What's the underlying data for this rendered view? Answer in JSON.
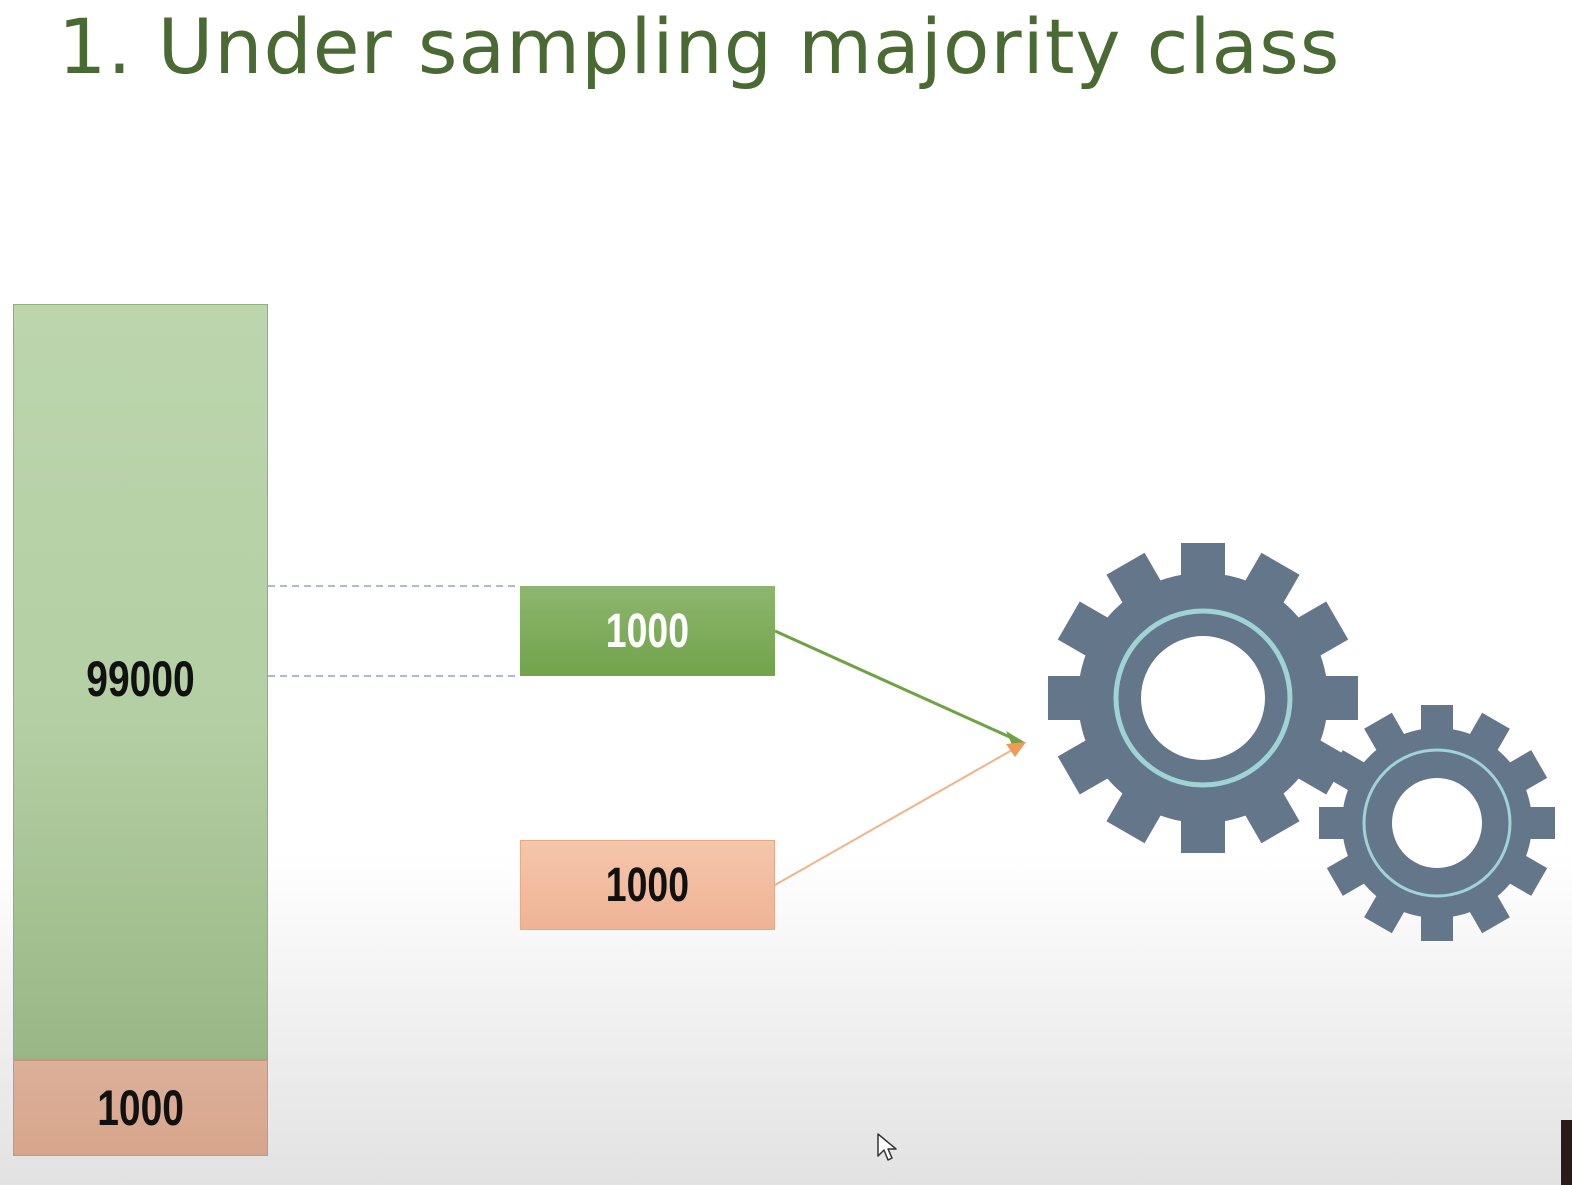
{
  "slide": {
    "title": "1. Under sampling majority class"
  },
  "original_data": {
    "majority_count": "99000",
    "minority_count": "1000"
  },
  "sampled_data": {
    "majority_sample_count": "1000",
    "minority_count": "1000"
  },
  "colors": {
    "title": "#4a6a34",
    "majority": "#b4cfa3",
    "majority_sample": "#71a34a",
    "minority": "#efb394",
    "gear": "#64768a",
    "gear_ring": "#9fd3d6"
  },
  "icons": {
    "model": "gears-icon",
    "pointer": "mouse-pointer-icon"
  }
}
